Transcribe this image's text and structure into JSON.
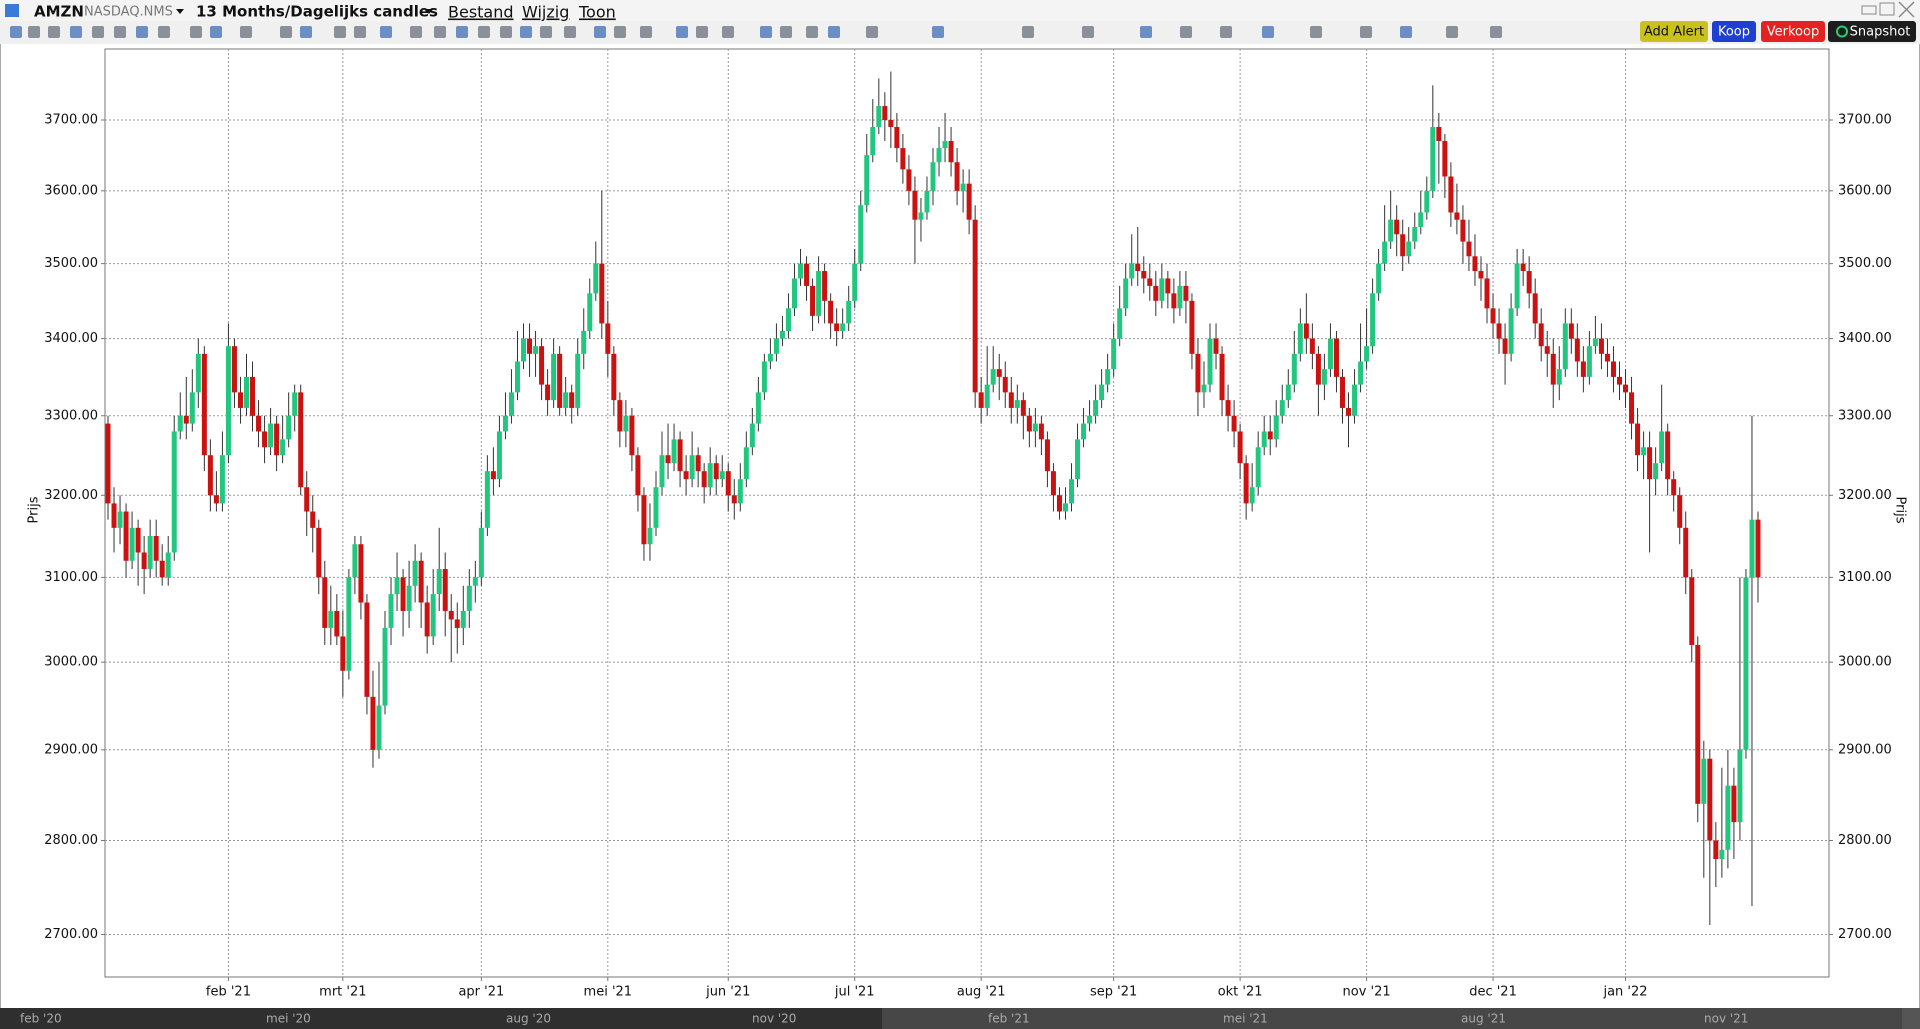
{
  "ui": {
    "symbol": "AMZN",
    "exchange": "NASDAQ.NMS",
    "period": "13 Months/Dagelijks candles",
    "menu": [
      "Bestand",
      "Wijzig",
      "Toon"
    ],
    "buttons": [
      "Add Alert",
      "Koop",
      "Verkoop",
      "Snapshot"
    ],
    "navigator_labels": [
      "feb '20",
      "mei '20",
      "aug '20",
      "nov '20",
      "feb '21",
      "mei '21",
      "aug '21",
      "nov '21"
    ]
  },
  "chart_data": {
    "type": "candlestick",
    "y_label": "Prijs",
    "log_scale": true,
    "grid": true,
    "up_color": "#22c77f",
    "down_color": "#cc1111",
    "wick_color": "#333333",
    "ylim": [
      2656,
      3803
    ],
    "yticks": [
      {
        "value": 2700,
        "label": "2700.00"
      },
      {
        "value": 2800,
        "label": "2800.00"
      },
      {
        "value": 2900,
        "label": "2900.00"
      },
      {
        "value": 3000,
        "label": "3000.00"
      },
      {
        "value": 3100,
        "label": "3100.00"
      },
      {
        "value": 3200,
        "label": "3200.00"
      },
      {
        "value": 3300,
        "label": "3300.00"
      },
      {
        "value": 3400,
        "label": "3400.00"
      },
      {
        "value": 3500,
        "label": "3500.00"
      },
      {
        "value": 3600,
        "label": "3600.00"
      },
      {
        "value": 3700,
        "label": "3700.00"
      }
    ],
    "categories": [
      null,
      null,
      null,
      null,
      null,
      null,
      null,
      null,
      null,
      null,
      null,
      null,
      null,
      null,
      null,
      null,
      null,
      null,
      null,
      null,
      "feb '21",
      null,
      null,
      null,
      null,
      null,
      null,
      null,
      null,
      null,
      null,
      null,
      null,
      null,
      null,
      null,
      null,
      null,
      null,
      "mrt '21",
      null,
      null,
      null,
      null,
      null,
      null,
      null,
      null,
      null,
      null,
      null,
      null,
      null,
      null,
      null,
      null,
      null,
      null,
      null,
      null,
      null,
      null,
      "apr '21",
      null,
      null,
      null,
      null,
      null,
      null,
      null,
      null,
      null,
      null,
      null,
      null,
      null,
      null,
      null,
      null,
      null,
      null,
      null,
      null,
      "mei '21",
      null,
      null,
      null,
      null,
      null,
      null,
      null,
      null,
      null,
      null,
      null,
      null,
      null,
      null,
      null,
      null,
      null,
      null,
      null,
      "jun '21",
      null,
      null,
      null,
      null,
      null,
      null,
      null,
      null,
      null,
      null,
      null,
      null,
      null,
      null,
      null,
      null,
      null,
      null,
      null,
      null,
      "jul '21",
      null,
      null,
      null,
      null,
      null,
      null,
      null,
      null,
      null,
      null,
      null,
      null,
      null,
      null,
      null,
      null,
      null,
      null,
      null,
      null,
      "aug '21",
      null,
      null,
      null,
      null,
      null,
      null,
      null,
      null,
      null,
      null,
      null,
      null,
      null,
      null,
      null,
      null,
      null,
      null,
      null,
      null,
      null,
      "sep '21",
      null,
      null,
      null,
      null,
      null,
      null,
      null,
      null,
      null,
      null,
      null,
      null,
      null,
      null,
      null,
      null,
      null,
      null,
      null,
      null,
      "okt '21",
      null,
      null,
      null,
      null,
      null,
      null,
      null,
      null,
      null,
      null,
      null,
      null,
      null,
      null,
      null,
      null,
      null,
      null,
      null,
      null,
      "nov '21",
      null,
      null,
      null,
      null,
      null,
      null,
      null,
      null,
      null,
      null,
      null,
      null,
      null,
      null,
      null,
      null,
      null,
      null,
      null,
      null,
      "dec '21",
      null,
      null,
      null,
      null,
      null,
      null,
      null,
      null,
      null,
      null,
      null,
      null,
      null,
      null,
      null,
      null,
      null,
      null,
      null,
      null,
      null,
      "jan '22",
      null,
      null,
      null,
      null,
      null,
      null,
      null,
      null,
      null,
      null,
      null,
      null,
      null,
      null,
      null,
      null,
      null,
      null,
      null,
      null,
      null,
      null
    ],
    "open": [
      3290,
      3190,
      3160,
      3180,
      3120,
      3160,
      3130,
      3110,
      3150,
      3120,
      3100,
      3130,
      3280,
      3300,
      3290,
      3330,
      3380,
      3250,
      3200,
      3190,
      3250,
      3390,
      3330,
      3310,
      3350,
      3300,
      3280,
      3260,
      3290,
      3250,
      3270,
      3300,
      3330,
      3210,
      3180,
      3160,
      3100,
      3040,
      3060,
      3030,
      2990,
      3100,
      3140,
      3070,
      2960,
      2900,
      2950,
      3040,
      3080,
      3100,
      3060,
      3090,
      3120,
      3070,
      3030,
      3080,
      3110,
      3060,
      3050,
      3040,
      3060,
      3090,
      3100,
      3160,
      3230,
      3220,
      3280,
      3300,
      3330,
      3370,
      3400,
      3380,
      3390,
      3340,
      3320,
      3380,
      3310,
      3330,
      3310,
      3380,
      3410,
      3460,
      3500,
      3420,
      3380,
      3320,
      3280,
      3300,
      3250,
      3200,
      3140,
      3160,
      3210,
      3250,
      3240,
      3270,
      3230,
      3220,
      3250,
      3230,
      3210,
      3240,
      3220,
      3230,
      3200,
      3190,
      3220,
      3260,
      3290,
      3330,
      3370,
      3380,
      3400,
      3410,
      3440,
      3480,
      3500,
      3470,
      3430,
      3490,
      3450,
      3420,
      3410,
      3420,
      3450,
      3500,
      3580,
      3650,
      3690,
      3720,
      3700,
      3690,
      3660,
      3630,
      3600,
      3560,
      3570,
      3600,
      3640,
      3660,
      3670,
      3640,
      3600,
      3610,
      3560,
      3330,
      3310,
      3340,
      3360,
      3350,
      3330,
      3310,
      3320,
      3300,
      3280,
      3290,
      3270,
      3230,
      3200,
      3180,
      3190,
      3220,
      3270,
      3290,
      3300,
      3320,
      3340,
      3360,
      3400,
      3440,
      3480,
      3500,
      3490,
      3480,
      3470,
      3450,
      3480,
      3460,
      3440,
      3470,
      3450,
      3380,
      3330,
      3340,
      3400,
      3380,
      3320,
      3300,
      3280,
      3240,
      3190,
      3210,
      3260,
      3280,
      3270,
      3300,
      3320,
      3340,
      3380,
      3420,
      3400,
      3380,
      3340,
      3360,
      3400,
      3350,
      3310,
      3300,
      3340,
      3370,
      3390,
      3460,
      3500,
      3530,
      3560,
      3540,
      3510,
      3530,
      3550,
      3570,
      3600,
      3690,
      3670,
      3620,
      3570,
      3560,
      3530,
      3510,
      3490,
      3480,
      3440,
      3420,
      3400,
      3380,
      3440,
      3500,
      3490,
      3460,
      3420,
      3390,
      3380,
      3340,
      3360,
      3420,
      3400,
      3370,
      3350,
      3390,
      3400,
      3380,
      3370,
      3350,
      3340,
      3330,
      3290,
      3250,
      3260,
      3220,
      3240,
      3280,
      3220,
      3200,
      3160,
      3100,
      3020,
      2840,
      2890,
      2800,
      2780,
      2790,
      2860,
      2820,
      2900,
      3100,
      3170
    ],
    "high": [
      3300,
      3210,
      3200,
      3190,
      3180,
      3170,
      3150,
      3170,
      3170,
      3140,
      3150,
      3300,
      3330,
      3350,
      3360,
      3400,
      3390,
      3270,
      3230,
      3280,
      3420,
      3400,
      3350,
      3380,
      3370,
      3320,
      3300,
      3310,
      3300,
      3300,
      3330,
      3340,
      3340,
      3230,
      3200,
      3170,
      3120,
      3090,
      3080,
      3060,
      3110,
      3150,
      3150,
      3080,
      2990,
      3000,
      3060,
      3100,
      3130,
      3110,
      3120,
      3140,
      3130,
      3090,
      3110,
      3160,
      3130,
      3080,
      3070,
      3090,
      3110,
      3120,
      3180,
      3250,
      3260,
      3300,
      3330,
      3360,
      3410,
      3420,
      3420,
      3410,
      3400,
      3360,
      3400,
      3390,
      3350,
      3340,
      3400,
      3440,
      3480,
      3530,
      3600,
      3450,
      3390,
      3330,
      3320,
      3310,
      3260,
      3210,
      3190,
      3230,
      3280,
      3290,
      3290,
      3280,
      3250,
      3280,
      3260,
      3240,
      3260,
      3250,
      3250,
      3240,
      3220,
      3240,
      3280,
      3310,
      3350,
      3380,
      3400,
      3420,
      3430,
      3460,
      3500,
      3520,
      3510,
      3480,
      3510,
      3500,
      3460,
      3440,
      3440,
      3470,
      3520,
      3600,
      3680,
      3730,
      3760,
      3740,
      3770,
      3710,
      3680,
      3650,
      3620,
      3590,
      3620,
      3660,
      3690,
      3710,
      3690,
      3660,
      3630,
      3630,
      3580,
      3350,
      3390,
      3390,
      3380,
      3370,
      3350,
      3340,
      3330,
      3310,
      3310,
      3300,
      3280,
      3240,
      3210,
      3210,
      3240,
      3290,
      3310,
      3320,
      3340,
      3360,
      3380,
      3420,
      3470,
      3500,
      3540,
      3550,
      3510,
      3500,
      3490,
      3500,
      3490,
      3480,
      3490,
      3490,
      3460,
      3400,
      3370,
      3420,
      3420,
      3390,
      3340,
      3320,
      3290,
      3250,
      3240,
      3280,
      3300,
      3300,
      3320,
      3340,
      3360,
      3410,
      3440,
      3460,
      3420,
      3390,
      3380,
      3420,
      3410,
      3360,
      3330,
      3360,
      3420,
      3440,
      3480,
      3520,
      3580,
      3600,
      3580,
      3560,
      3550,
      3570,
      3600,
      3620,
      3750,
      3710,
      3680,
      3640,
      3610,
      3580,
      3560,
      3540,
      3510,
      3500,
      3460,
      3440,
      3420,
      3460,
      3520,
      3520,
      3510,
      3480,
      3440,
      3410,
      3400,
      3390,
      3440,
      3440,
      3420,
      3390,
      3410,
      3430,
      3420,
      3400,
      3390,
      3370,
      3360,
      3350,
      3310,
      3280,
      3280,
      3260,
      3340,
      3290,
      3230,
      3210,
      3180,
      3110,
      3030,
      2910,
      2900,
      2820,
      2880,
      2900,
      2880,
      3100,
      3110,
      3300,
      3180
    ],
    "low": [
      3170,
      3130,
      3140,
      3100,
      3110,
      3090,
      3080,
      3100,
      3100,
      3090,
      3090,
      3120,
      3270,
      3270,
      3280,
      3310,
      3230,
      3180,
      3180,
      3180,
      3240,
      3310,
      3290,
      3300,
      3280,
      3260,
      3240,
      3250,
      3230,
      3240,
      3260,
      3280,
      3200,
      3150,
      3130,
      3080,
      3020,
      3020,
      3020,
      2960,
      2980,
      3080,
      3050,
      2940,
      2880,
      2890,
      2940,
      3020,
      3060,
      3030,
      3040,
      3070,
      3040,
      3010,
      3020,
      3060,
      3030,
      3000,
      3010,
      3020,
      3040,
      3070,
      3090,
      3150,
      3200,
      3210,
      3270,
      3290,
      3320,
      3360,
      3350,
      3350,
      3320,
      3300,
      3310,
      3300,
      3300,
      3290,
      3300,
      3360,
      3400,
      3450,
      3400,
      3350,
      3300,
      3260,
      3260,
      3230,
      3180,
      3120,
      3120,
      3150,
      3200,
      3220,
      3230,
      3210,
      3200,
      3210,
      3210,
      3190,
      3200,
      3200,
      3210,
      3180,
      3170,
      3180,
      3210,
      3250,
      3280,
      3320,
      3360,
      3370,
      3390,
      3400,
      3430,
      3470,
      3450,
      3410,
      3420,
      3420,
      3400,
      3390,
      3400,
      3410,
      3440,
      3490,
      3570,
      3640,
      3680,
      3670,
      3660,
      3640,
      3610,
      3580,
      3500,
      3530,
      3560,
      3580,
      3620,
      3640,
      3620,
      3580,
      3570,
      3540,
      3310,
      3290,
      3300,
      3330,
      3320,
      3310,
      3290,
      3290,
      3270,
      3260,
      3260,
      3250,
      3210,
      3180,
      3170,
      3170,
      3180,
      3210,
      3260,
      3280,
      3290,
      3310,
      3330,
      3350,
      3390,
      3430,
      3470,
      3470,
      3460,
      3450,
      3430,
      3440,
      3440,
      3420,
      3430,
      3420,
      3360,
      3300,
      3310,
      3330,
      3360,
      3300,
      3280,
      3260,
      3220,
      3170,
      3180,
      3200,
      3250,
      3250,
      3260,
      3290,
      3310,
      3330,
      3370,
      3380,
      3360,
      3300,
      3320,
      3350,
      3330,
      3290,
      3260,
      3290,
      3330,
      3360,
      3380,
      3450,
      3490,
      3520,
      3510,
      3490,
      3500,
      3520,
      3540,
      3560,
      3590,
      3610,
      3590,
      3550,
      3540,
      3500,
      3490,
      3470,
      3450,
      3420,
      3400,
      3380,
      3340,
      3370,
      3430,
      3470,
      3440,
      3400,
      3370,
      3350,
      3310,
      3320,
      3350,
      3380,
      3350,
      3330,
      3340,
      3380,
      3360,
      3350,
      3330,
      3320,
      3310,
      3270,
      3230,
      3220,
      3130,
      3200,
      3230,
      3200,
      3180,
      3140,
      3080,
      3000,
      2820,
      2760,
      2710,
      2750,
      2760,
      2770,
      2780,
      2800,
      2890,
      2730,
      3070
    ],
    "close": [
      3190,
      3160,
      3180,
      3120,
      3160,
      3130,
      3110,
      3150,
      3120,
      3100,
      3130,
      3280,
      3300,
      3290,
      3330,
      3380,
      3250,
      3200,
      3190,
      3250,
      3390,
      3330,
      3310,
      3350,
      3300,
      3280,
      3260,
      3290,
      3250,
      3270,
      3300,
      3330,
      3210,
      3180,
      3160,
      3100,
      3040,
      3060,
      3030,
      2990,
      3100,
      3140,
      3070,
      2960,
      2900,
      2950,
      3040,
      3080,
      3100,
      3060,
      3090,
      3120,
      3070,
      3030,
      3080,
      3110,
      3060,
      3050,
      3040,
      3060,
      3090,
      3100,
      3160,
      3230,
      3220,
      3280,
      3300,
      3330,
      3370,
      3400,
      3380,
      3390,
      3340,
      3320,
      3380,
      3310,
      3330,
      3310,
      3380,
      3410,
      3460,
      3500,
      3420,
      3380,
      3320,
      3280,
      3300,
      3250,
      3200,
      3140,
      3160,
      3210,
      3250,
      3240,
      3270,
      3230,
      3220,
      3250,
      3230,
      3210,
      3240,
      3220,
      3230,
      3200,
      3190,
      3220,
      3260,
      3290,
      3330,
      3370,
      3380,
      3400,
      3410,
      3440,
      3480,
      3500,
      3470,
      3430,
      3490,
      3450,
      3420,
      3410,
      3420,
      3450,
      3500,
      3580,
      3650,
      3690,
      3720,
      3700,
      3690,
      3660,
      3630,
      3600,
      3560,
      3570,
      3600,
      3640,
      3660,
      3670,
      3640,
      3600,
      3610,
      3560,
      3330,
      3310,
      3340,
      3360,
      3350,
      3330,
      3310,
      3320,
      3300,
      3280,
      3290,
      3270,
      3230,
      3200,
      3180,
      3190,
      3220,
      3270,
      3290,
      3300,
      3320,
      3340,
      3360,
      3400,
      3440,
      3480,
      3500,
      3490,
      3480,
      3470,
      3450,
      3480,
      3460,
      3440,
      3470,
      3450,
      3380,
      3330,
      3340,
      3400,
      3380,
      3320,
      3300,
      3280,
      3240,
      3190,
      3210,
      3260,
      3280,
      3270,
      3300,
      3320,
      3340,
      3380,
      3420,
      3400,
      3380,
      3340,
      3360,
      3400,
      3350,
      3310,
      3300,
      3340,
      3370,
      3390,
      3460,
      3500,
      3530,
      3560,
      3540,
      3510,
      3530,
      3550,
      3570,
      3600,
      3690,
      3670,
      3620,
      3570,
      3560,
      3530,
      3510,
      3490,
      3480,
      3440,
      3420,
      3400,
      3380,
      3440,
      3500,
      3490,
      3460,
      3420,
      3390,
      3380,
      3340,
      3360,
      3420,
      3400,
      3370,
      3350,
      3390,
      3400,
      3380,
      3370,
      3350,
      3340,
      3330,
      3290,
      3250,
      3260,
      3220,
      3240,
      3280,
      3220,
      3200,
      3160,
      3100,
      3020,
      2840,
      2890,
      2800,
      2780,
      2790,
      2860,
      2820,
      2900,
      3100,
      3170,
      3100
    ]
  }
}
